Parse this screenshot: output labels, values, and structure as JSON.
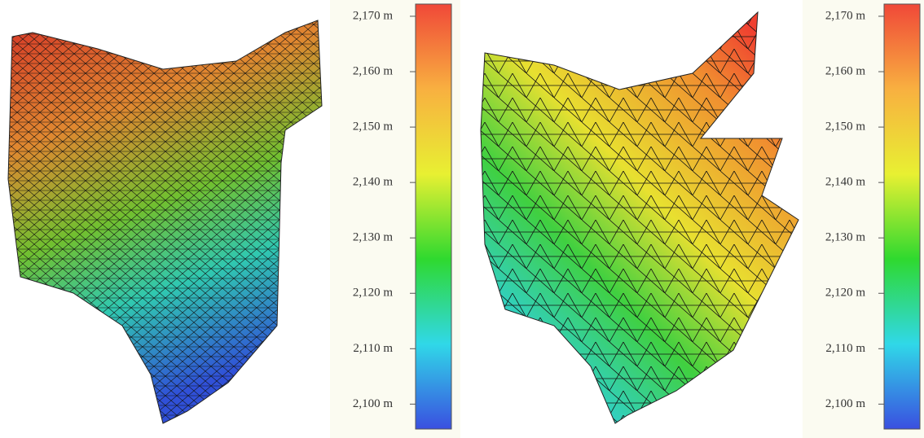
{
  "chart_data": [
    {
      "type": "surface",
      "zlim": [
        2095.5,
        2172.2
      ],
      "zticks": [
        {
          "value": 2100,
          "label": "2,100 m"
        },
        {
          "value": 2110,
          "label": "2,110 m"
        },
        {
          "value": 2120,
          "label": "2,120 m"
        },
        {
          "value": 2130,
          "label": "2,130 m"
        },
        {
          "value": 2140,
          "label": "2,140 m"
        },
        {
          "value": 2150,
          "label": "2,150 m"
        },
        {
          "value": 2160,
          "label": "2,160 m"
        },
        {
          "value": 2170,
          "label": "2,170 m"
        }
      ],
      "colors": [
        "#3a4fe0",
        "#30d8e8",
        "#2fd92f",
        "#e8f032",
        "#f8b040",
        "#f04838"
      ]
    },
    {
      "type": "surface",
      "zlim": [
        2095.5,
        2172.2
      ],
      "zticks": [
        {
          "value": 2100,
          "label": "2,100 m"
        },
        {
          "value": 2110,
          "label": "2,110 m"
        },
        {
          "value": 2120,
          "label": "2,120 m"
        },
        {
          "value": 2130,
          "label": "2,130 m"
        },
        {
          "value": 2140,
          "label": "2,140 m"
        },
        {
          "value": 2150,
          "label": "2,150 m"
        },
        {
          "value": 2160,
          "label": "2,160 m"
        },
        {
          "value": 2170,
          "label": "2,170 m"
        }
      ],
      "colors": [
        "#3a4fe0",
        "#30d8e8",
        "#2fd92f",
        "#e8f032",
        "#f8b040",
        "#f04838"
      ]
    }
  ]
}
